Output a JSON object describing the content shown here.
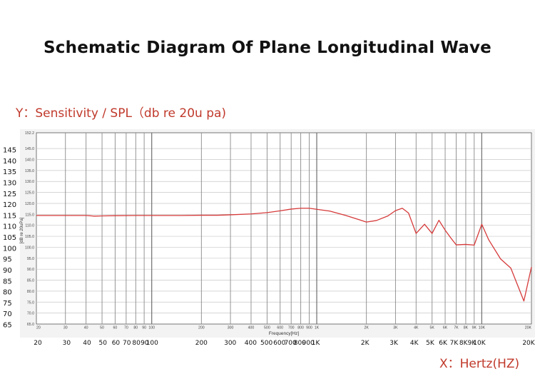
{
  "title": "Schematic Diagram Of Plane Longitudinal Wave",
  "y_axis_caption": "Y：Sensitivity / SPL（db re 20u pa)",
  "x_axis_caption": "X：Hertz(HZ)",
  "colors": {
    "curve": "#d63a3a",
    "caption": "#c0392b",
    "grid_major": "#8a8a8a",
    "grid_minor": "#c8c8c8"
  },
  "chart_data": {
    "type": "line",
    "xscale": "log",
    "xlim": [
      20,
      20000
    ],
    "ylim": [
      65,
      152.2
    ],
    "grid": true,
    "inner_xlabel": "Frequency[Hz]",
    "inner_ylabel": "[dB re 20uPa]",
    "inner_y_ticks": [
      "152.2",
      "145.0",
      "140.0",
      "135.0",
      "130.0",
      "125.0",
      "120.0",
      "115.0",
      "110.0",
      "105.0",
      "100.0",
      "95.0",
      "90.0",
      "85.0",
      "80.0",
      "75.0",
      "70.0",
      "65.0"
    ],
    "inner_x_ticks": [
      {
        "label": "20",
        "x": 20
      },
      {
        "label": "30",
        "x": 30
      },
      {
        "label": "40",
        "x": 40
      },
      {
        "label": "50",
        "x": 50
      },
      {
        "label": "60",
        "x": 60
      },
      {
        "label": "70",
        "x": 70
      },
      {
        "label": "80",
        "x": 80
      },
      {
        "label": "90",
        "x": 90
      },
      {
        "label": "100",
        "x": 100
      },
      {
        "label": "200",
        "x": 200
      },
      {
        "label": "300",
        "x": 300
      },
      {
        "label": "400",
        "x": 400
      },
      {
        "label": "500",
        "x": 500
      },
      {
        "label": "600",
        "x": 600
      },
      {
        "label": "700",
        "x": 700
      },
      {
        "label": "800",
        "x": 800
      },
      {
        "label": "900",
        "x": 900
      },
      {
        "label": "1K",
        "x": 1000
      },
      {
        "label": "2K",
        "x": 2000
      },
      {
        "label": "3K",
        "x": 3000
      },
      {
        "label": "4K",
        "x": 4000
      },
      {
        "label": "5K",
        "x": 5000
      },
      {
        "label": "6K",
        "x": 6000
      },
      {
        "label": "7K",
        "x": 7000
      },
      {
        "label": "8K",
        "x": 8000
      },
      {
        "label": "9K",
        "x": 9000
      },
      {
        "label": "10K",
        "x": 10000
      },
      {
        "label": "20K",
        "x": 20000
      }
    ],
    "outer_y_labels": [
      {
        "label": "145",
        "y": 145
      },
      {
        "label": "140",
        "y": 140
      },
      {
        "label": "135",
        "y": 135
      },
      {
        "label": "130",
        "y": 130
      },
      {
        "label": "125",
        "y": 125
      },
      {
        "label": "120",
        "y": 120
      },
      {
        "label": "115",
        "y": 115
      },
      {
        "label": "110",
        "y": 110
      },
      {
        "label": "105",
        "y": 105
      },
      {
        "label": "100",
        "y": 100
      },
      {
        "label": "95",
        "y": 95
      },
      {
        "label": "90",
        "y": 90
      },
      {
        "label": "85",
        "y": 85
      },
      {
        "label": "80",
        "y": 80
      },
      {
        "label": "75",
        "y": 75
      },
      {
        "label": "70",
        "y": 70
      },
      {
        "label": "65",
        "y": 65
      }
    ],
    "outer_x_labels": [
      {
        "label": "20",
        "x": 20
      },
      {
        "label": "30",
        "x": 30
      },
      {
        "label": "40",
        "x": 40
      },
      {
        "label": "50",
        "x": 50
      },
      {
        "label": "60",
        "x": 60
      },
      {
        "label": "70",
        "x": 70
      },
      {
        "label": "80",
        "x": 80
      },
      {
        "label": "90",
        "x": 90
      },
      {
        "label": "100",
        "x": 100
      },
      {
        "label": "200",
        "x": 200
      },
      {
        "label": "300",
        "x": 300
      },
      {
        "label": "400",
        "x": 400
      },
      {
        "label": "500",
        "x": 500
      },
      {
        "label": "600",
        "x": 600
      },
      {
        "label": "700",
        "x": 700
      },
      {
        "label": "800",
        "x": 800
      },
      {
        "label": "900",
        "x": 900
      },
      {
        "label": "1K",
        "x": 1000
      },
      {
        "label": "2K",
        "x": 2000
      },
      {
        "label": "3K",
        "x": 3000
      },
      {
        "label": "4K",
        "x": 4000
      },
      {
        "label": "5K",
        "x": 5000
      },
      {
        "label": "6K",
        "x": 6000
      },
      {
        "label": "7K",
        "x": 7000
      },
      {
        "label": "8K",
        "x": 8000
      },
      {
        "label": "9K",
        "x": 9000
      },
      {
        "label": "10K",
        "x": 10000
      },
      {
        "label": "20K",
        "x": 20000
      }
    ],
    "series": [
      {
        "x": [
          20,
          30,
          40,
          45,
          50,
          60,
          80,
          100,
          150,
          200,
          250,
          300,
          400,
          500,
          600,
          700,
          800,
          900,
          1000,
          1200,
          1500,
          2000,
          2300,
          2700,
          3000,
          3300,
          3600,
          4000,
          4500,
          5000,
          5500,
          6000,
          6500,
          7000,
          8000,
          9000,
          10000,
          11000,
          13000,
          15000,
          18000,
          20000
        ],
        "y": [
          114.5,
          114.5,
          114.5,
          114.2,
          114.3,
          114.4,
          114.5,
          114.5,
          114.5,
          114.6,
          114.6,
          114.8,
          115.2,
          115.8,
          116.6,
          117.4,
          117.8,
          117.8,
          117.3,
          116.5,
          114.5,
          111.5,
          112.2,
          114.3,
          116.7,
          117.8,
          115.6,
          106.3,
          110.5,
          106.3,
          112.3,
          107.8,
          104.2,
          101.1,
          101.3,
          101,
          110.5,
          103.5,
          94.7,
          90.5,
          75.5,
          91
        ]
      }
    ]
  }
}
